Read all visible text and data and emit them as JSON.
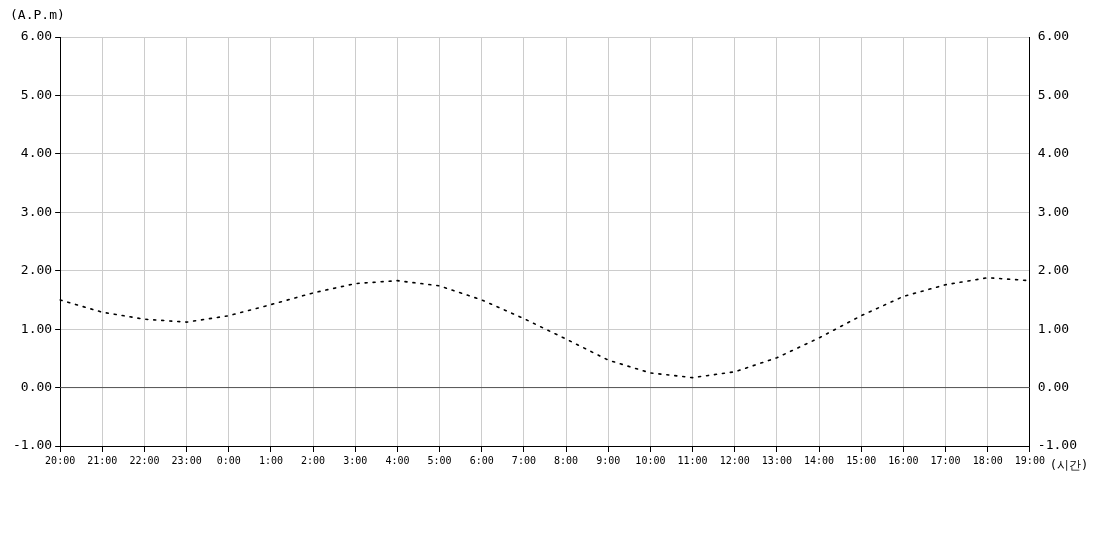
{
  "chart_data": {
    "type": "line",
    "xlabel": "(시간)",
    "ylabel": "(A.P.m)",
    "categories": [
      "20:00",
      "21:00",
      "22:00",
      "23:00",
      "0:00",
      "1:00",
      "2:00",
      "3:00",
      "4:00",
      "5:00",
      "6:00",
      "7:00",
      "8:00",
      "9:00",
      "10:00",
      "11:00",
      "12:00",
      "13:00",
      "14:00",
      "15:00",
      "16:00",
      "17:00",
      "18:00",
      "19:00"
    ],
    "series": [
      {
        "color": "#000000",
        "line_style": "dotted",
        "values": [
          1.5,
          1.29,
          1.17,
          1.12,
          1.23,
          1.42,
          1.62,
          1.78,
          1.83,
          1.74,
          1.5,
          1.18,
          0.83,
          0.47,
          0.25,
          0.17,
          0.27,
          0.51,
          0.85,
          1.23,
          1.56,
          1.76,
          1.88,
          1.83
        ]
      }
    ],
    "ylim": [
      -1,
      6
    ],
    "yticks": [
      {
        "value": -1,
        "label": "-1.00"
      },
      {
        "value": 0,
        "label": "0.00"
      },
      {
        "value": 1,
        "label": "1.00"
      },
      {
        "value": 2,
        "label": "2.00"
      },
      {
        "value": 3,
        "label": "3.00"
      },
      {
        "value": 4,
        "label": "4.00"
      },
      {
        "value": 5,
        "label": "5.00"
      },
      {
        "value": 6,
        "label": "6.00"
      }
    ],
    "y2lim": [
      -1,
      6
    ],
    "y2ticks": [
      {
        "value": -1,
        "label": "-1.00"
      },
      {
        "value": 0,
        "label": "0.00"
      },
      {
        "value": 1,
        "label": "1.00"
      },
      {
        "value": 2,
        "label": "2.00"
      },
      {
        "value": 3,
        "label": "3.00"
      },
      {
        "value": 4,
        "label": "4.00"
      },
      {
        "value": 5,
        "label": "5.00"
      },
      {
        "value": 6,
        "label": "6.00"
      }
    ],
    "ref_lines": [
      {
        "axis": "y",
        "value": 0,
        "color": "#555555"
      }
    ],
    "grid": true,
    "legend": false,
    "marker": "none"
  }
}
